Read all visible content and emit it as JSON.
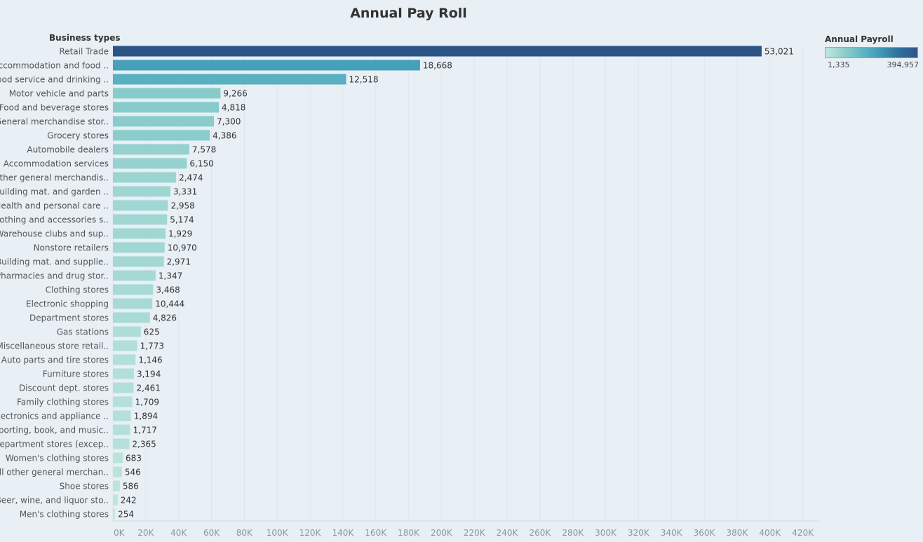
{
  "chart_data": {
    "type": "bar",
    "orientation": "horizontal",
    "title": "Annual Pay Roll",
    "row_header": "Business types",
    "xlim": [
      0,
      430000
    ],
    "x_ticks": [
      "0K",
      "20K",
      "40K",
      "60K",
      "80K",
      "100K",
      "120K",
      "140K",
      "160K",
      "180K",
      "200K",
      "220K",
      "240K",
      "260K",
      "280K",
      "300K",
      "320K",
      "340K",
      "360K",
      "380K",
      "400K",
      "420K"
    ],
    "x_tick_values": [
      0,
      20000,
      40000,
      60000,
      80000,
      100000,
      120000,
      140000,
      160000,
      180000,
      200000,
      220000,
      240000,
      260000,
      280000,
      300000,
      320000,
      340000,
      360000,
      380000,
      400000,
      420000
    ],
    "gridlines": "vertical",
    "color_legend": {
      "title": "Annual Payroll",
      "min_label": "1,335",
      "max_label": "394,957",
      "min": 1335,
      "max": 394957,
      "colors": [
        "#c2e6de",
        "#2c5585"
      ],
      "position": "top-right"
    },
    "categories": [
      "Retail Trade",
      "Accommodation and food ..",
      "Food service and drinking ..",
      "Motor vehicle and parts",
      "Food and beverage stores",
      "General merchandise stor..",
      "Grocery stores",
      "Automobile dealers",
      "Accommodation services",
      "Other general merchandis..",
      "Building mat. and garden ..",
      "Health and personal care ..",
      "Clothing and accessories s..",
      "Warehouse clubs and sup..",
      "Nonstore retailers",
      "Building mat. and supplie..",
      "Pharmacies and drug stor..",
      "Clothing stores",
      "Electronic shopping",
      "Department stores",
      "Gas stations",
      "Miscellaneous store retail..",
      "Auto parts and tire stores",
      "Furniture stores",
      "Discount dept. stores",
      "Family clothing stores",
      "Electronics and appliance ..",
      "Sporting, book, and  music..",
      "Department stores (excep..",
      "Women's clothing stores",
      "All other general merchan..",
      "Shoe stores",
      "Beer, wine, and liquor sto..",
      "Men's clothing stores"
    ],
    "values": [
      394957,
      187000,
      142000,
      65500,
      64500,
      61500,
      59000,
      46500,
      45000,
      38500,
      35000,
      33500,
      33000,
      32000,
      31500,
      31000,
      26000,
      24500,
      24000,
      22500,
      17000,
      14800,
      13800,
      12800,
      12600,
      11800,
      11000,
      10500,
      10000,
      6000,
      5500,
      4200,
      2900,
      1335
    ],
    "labels": [
      "53,021",
      "18,668",
      "12,518",
      "9,266",
      "4,818",
      "7,300",
      "4,386",
      "7,578",
      "6,150",
      "2,474",
      "3,331",
      "2,958",
      "5,174",
      "1,929",
      "10,970",
      "2,971",
      "1,347",
      "3,468",
      "10,444",
      "4,826",
      "625",
      "1,773",
      "1,146",
      "3,194",
      "2,461",
      "1,709",
      "1,894",
      "1,717",
      "2,365",
      "683",
      "546",
      "586",
      "242",
      "254"
    ]
  }
}
